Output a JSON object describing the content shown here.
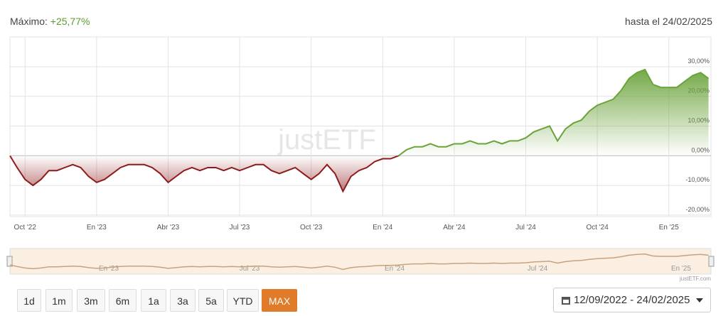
{
  "header": {
    "max_label": "Máximo:",
    "max_value": "+25,77%",
    "date_label": "hasta el 24/02/2025"
  },
  "chart_data": {
    "type": "line",
    "watermark": "justETF",
    "categories": [
      null,
      "Oct '22",
      null,
      null,
      null,
      null,
      null,
      null,
      null,
      null,
      "En '23",
      null,
      null,
      null,
      null,
      null,
      null,
      null,
      null,
      "Abr '23",
      null,
      null,
      null,
      null,
      null,
      null,
      null,
      null,
      "Jul '23",
      null,
      null,
      null,
      null,
      null,
      null,
      null,
      null,
      "Oct '23",
      null,
      null,
      null,
      null,
      null,
      null,
      null,
      null,
      "En '24",
      null,
      null,
      null,
      null,
      null,
      null,
      null,
      null,
      "Abr '24",
      null,
      null,
      null,
      null,
      null,
      null,
      null,
      null,
      "Jul '24",
      null,
      null,
      null,
      null,
      null,
      null,
      null,
      null,
      "Oct '24",
      null,
      null,
      null,
      null,
      null,
      null,
      null,
      null,
      "En '25",
      null,
      null,
      null,
      null,
      null
    ],
    "values": [
      -4,
      -8,
      -10,
      -8,
      -5,
      -5,
      -4,
      -3,
      -4,
      -7,
      -9,
      -8,
      -6,
      -4,
      -3,
      -3,
      -3,
      -4,
      -6,
      -9,
      -7,
      -5,
      -4,
      -5,
      -4,
      -4,
      -5,
      -4,
      -5,
      -4,
      -3,
      -3,
      -5,
      -6,
      -5,
      -4,
      -6,
      -8,
      -6,
      -3,
      -6,
      -12,
      -7,
      -5,
      -4,
      -2,
      -1,
      -1,
      0,
      2,
      3,
      3,
      4,
      3,
      3,
      4,
      4,
      5,
      4,
      4,
      5,
      4,
      5,
      5,
      6,
      8,
      9,
      10,
      5,
      9,
      11,
      12,
      15,
      17,
      18,
      19,
      22,
      26,
      28,
      29,
      24,
      23,
      23,
      23,
      25,
      27,
      28,
      26
    ],
    "color_positive": "#6aa33a",
    "color_negative": "#8e1b1b",
    "ylim": [
      -20.5,
      40
    ],
    "yticks": [
      {
        "value": -20,
        "label": "-20,00%"
      },
      {
        "value": -10,
        "label": "-10,00%"
      },
      {
        "value": 0,
        "label": "0,00%"
      },
      {
        "value": 10,
        "label": "10,00%"
      },
      {
        "value": 20,
        "label": "20,00%"
      },
      {
        "value": 30,
        "label": "30,00%"
      }
    ],
    "grid": true
  },
  "navigator": {
    "labels": [
      "En '23",
      "Jul '23",
      "En '24",
      "Jul '24",
      "En '25"
    ],
    "credit": "justETF.com"
  },
  "buttons": [
    "1d",
    "1m",
    "3m",
    "6m",
    "1a",
    "3a",
    "5a",
    "YTD",
    "MAX"
  ],
  "selected_button": 8,
  "date_range": "12/09/2022 - 24/02/2025"
}
